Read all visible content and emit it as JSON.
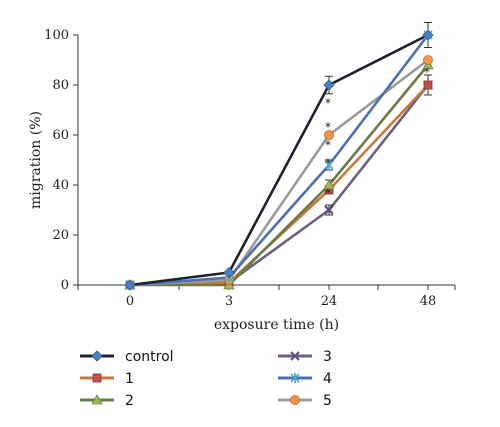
{
  "chart_data": {
    "type": "line",
    "categories": [
      "0",
      "3",
      "24",
      "48"
    ],
    "xlabel": "exposure time (h)",
    "ylabel": "migration (%)",
    "ylim": [
      0,
      100
    ],
    "yticks": [
      "0",
      "20",
      "40",
      "60",
      "80",
      "100"
    ],
    "grid": false,
    "legend_position": "bottom",
    "series": [
      {
        "name": "control",
        "values": [
          0,
          5,
          80,
          100
        ],
        "line_color": "#20202e",
        "marker": "diamond",
        "marker_color": "#4a7fc1"
      },
      {
        "name": "1",
        "values": [
          0,
          1,
          38,
          80
        ],
        "line_color": "#c8783a",
        "marker": "square",
        "marker_color": "#c0504d"
      },
      {
        "name": "2",
        "values": [
          0,
          0,
          40,
          88
        ],
        "line_color": "#6b7b46",
        "marker": "triangle",
        "marker_color": "#9bbb59"
      },
      {
        "name": "3",
        "values": [
          0,
          1,
          30,
          80
        ],
        "line_color": "#6e5c85",
        "marker": "x",
        "marker_color": "#5f4a7b"
      },
      {
        "name": "4",
        "values": [
          0,
          3,
          48,
          100
        ],
        "line_color": "#4a6fb4",
        "marker": "star",
        "marker_color": "#4bacc6"
      },
      {
        "name": "5",
        "values": [
          0,
          2,
          60,
          90
        ],
        "line_color": "#9a9a9a",
        "marker": "circle",
        "marker_color": "#f79646"
      }
    ],
    "annotations": [
      {
        "x": "24",
        "text": "*"
      },
      {
        "x": "24",
        "text": "*"
      },
      {
        "x": "24",
        "text": "*"
      },
      {
        "x": "24",
        "text": "*"
      },
      {
        "x": "24",
        "text": "*"
      },
      {
        "x": "48",
        "text": "*"
      }
    ]
  }
}
